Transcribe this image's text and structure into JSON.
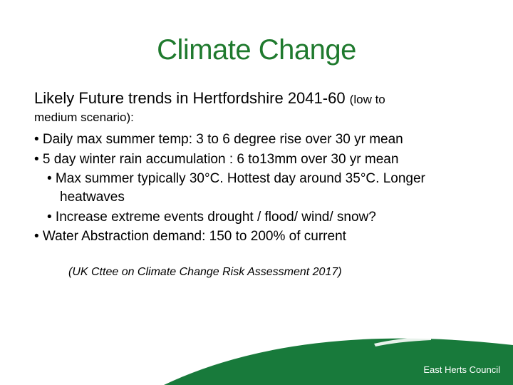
{
  "title": {
    "text": "Climate Change",
    "color": "#1f7a2e",
    "fontsize": 40
  },
  "subtitle": {
    "main": "Likely Future trends in Hertfordshire 2041-60 ",
    "paren": "(low to",
    "main_fontsize": 22,
    "paren_fontsize": 17
  },
  "scenario": {
    "text": "medium scenario):",
    "fontsize": 17
  },
  "bullets": {
    "fontsize": 19,
    "items": [
      {
        "text": "• Daily max summer temp: 3 to 6 degree rise over 30 yr mean",
        "indent": false
      },
      {
        "text": "• 5 day winter rain accumulation : 6 to13mm over 30 yr mean",
        "indent": false
      },
      {
        "text": "•   Max summer typically 30°C. Hottest day around 35°C. Longer heatwaves",
        "indent": true
      },
      {
        "text": "•   Increase extreme events drought / flood/ wind/ snow?",
        "indent": true
      },
      {
        "text": "• Water Abstraction demand: 150 to 200% of current",
        "indent": false
      }
    ]
  },
  "source": {
    "text": "(UK Cttee on Climate Change Risk Assessment 2017)",
    "fontsize": 16
  },
  "footer": {
    "label": "East Herts Council",
    "bg_color": "#187a3b",
    "accent_color": "#ffffff",
    "label_fontsize": 13
  }
}
